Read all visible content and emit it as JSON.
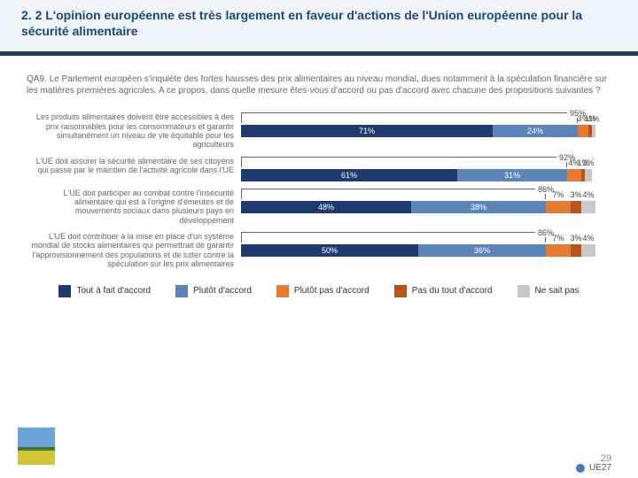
{
  "title": "2. 2 L'opinion européenne est très largement en faveur d'actions de l'Union européenne pour la sécurité alimentaire",
  "question": "QA9. Le Parlement européen s'inquiète des fortes hausses des prix alimentaires au niveau mondial, dues notamment à la spéculation financière sur les matières premières agricoles. A ce propos, dans quelle mesure êtes-vous d'accord ou pas d'accord avec chacune des propositions suivantes ?",
  "colors": {
    "c1": "#1e3a6e",
    "c2": "#5b85b8",
    "c3": "#e67a2e",
    "c4": "#b8541a",
    "c5": "#c8c8c8",
    "bg": "#ffffff",
    "title_color": "#1a4a7a",
    "text": "#666666"
  },
  "bar_area_width": 400,
  "rows": [
    {
      "label": "Les produits alimentaires doivent être accessibles à des prix raisonnables pour les consommateurs et garantir simultanément un niveau de vie équitable pour les agriculteurs",
      "bracket_pct": 95,
      "segs": [
        71,
        24,
        3,
        1,
        1
      ]
    },
    {
      "label": "L'UE doit assurer la sécurité alimentaire de ses citoyens qui passe par le maintien de l'activité agricole dans l'UE",
      "bracket_pct": 92,
      "segs": [
        61,
        31,
        4,
        1,
        2
      ]
    },
    {
      "label": "L'UE doit participer au combat contre l'insécurité alimentaire qui est à l'origine d'émeutes et de mouvements sociaux dans plusieurs pays en développement",
      "bracket_pct": 86,
      "segs": [
        48,
        38,
        7,
        3,
        4
      ]
    },
    {
      "label": "L'UE doit contribuer à la mise en place d'un système mondial de stocks alimentaires qui permettrait de garantir l'approvisionnement des populations et de lutter contre la spéculation sur les prix alimentaires",
      "bracket_pct": 86,
      "segs": [
        50,
        36,
        7,
        3,
        4
      ]
    }
  ],
  "legend": [
    "Tout à fait d'accord",
    "Plutôt d'accord",
    "Plutôt pas d'accord",
    "Pas du tout d'accord",
    "Ne sait pas"
  ],
  "ue27_label": "UE27",
  "page_number": "29"
}
